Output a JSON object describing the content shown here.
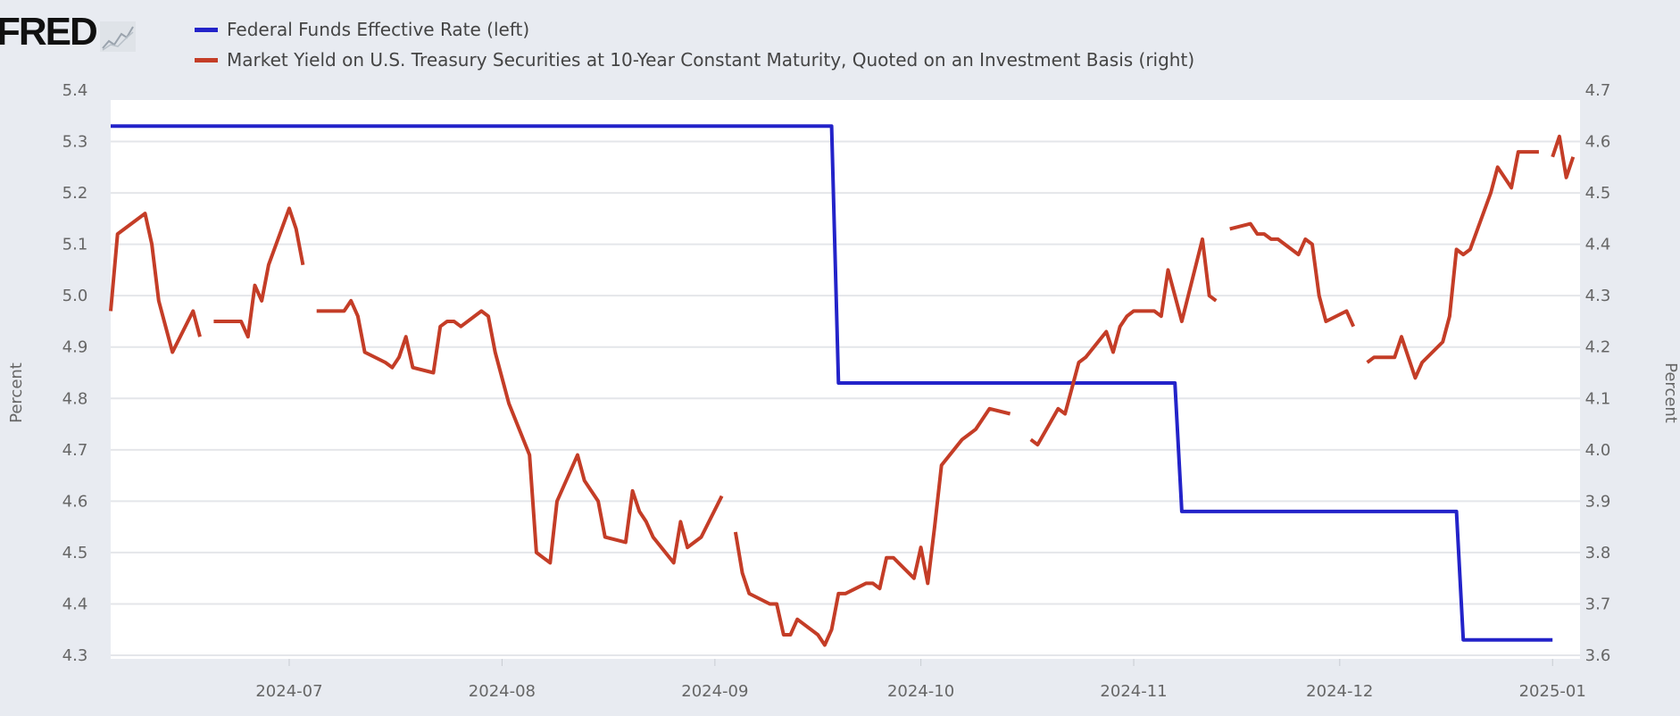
{
  "logo": {
    "text": "FRED",
    "icon": "chart-line-icon"
  },
  "chart_data": {
    "type": "line",
    "title": "",
    "y_left": {
      "label": "Percent",
      "range": [
        4.3,
        5.4
      ],
      "ticks": [
        "4.3",
        "4.4",
        "4.5",
        "4.6",
        "4.7",
        "4.8",
        "4.9",
        "5.0",
        "5.1",
        "5.2",
        "5.3",
        "5.4"
      ]
    },
    "y_right": {
      "label": "Percent",
      "range": [
        3.6,
        4.7
      ],
      "ticks": [
        "3.6",
        "3.7",
        "3.8",
        "3.9",
        "4.0",
        "4.1",
        "4.2",
        "4.3",
        "4.4",
        "4.5",
        "4.6",
        "4.7"
      ]
    },
    "x_range": [
      "2024-06-05",
      "2025-01-05"
    ],
    "x_ticks": [
      {
        "date": "2024-07-01",
        "label": "2024-07"
      },
      {
        "date": "2024-08-01",
        "label": "2024-08"
      },
      {
        "date": "2024-09-01",
        "label": "2024-09"
      },
      {
        "date": "2024-10-01",
        "label": "2024-10"
      },
      {
        "date": "2024-11-01",
        "label": "2024-11"
      },
      {
        "date": "2024-12-01",
        "label": "2024-12"
      },
      {
        "date": "2025-01-01",
        "label": "2025-01"
      }
    ],
    "grid": true,
    "legend_position": "top-left",
    "series": [
      {
        "name": "Federal Funds Effective Rate (left)",
        "axis": "left",
        "color": "#2323c9",
        "points": [
          [
            "2024-06-05",
            5.33
          ],
          [
            "2024-09-18",
            5.33
          ],
          [
            "2024-09-19",
            4.83
          ],
          [
            "2024-11-07",
            4.83
          ],
          [
            "2024-11-08",
            4.58
          ],
          [
            "2024-12-18",
            4.58
          ],
          [
            "2024-12-19",
            4.33
          ],
          [
            "2025-01-01",
            4.33
          ]
        ]
      },
      {
        "name": "Market Yield on U.S. Treasury Securities at 10-Year Constant Maturity, Quoted on an Investment Basis (right)",
        "axis": "right",
        "color": "#c43d27",
        "points": [
          [
            "2024-06-05",
            4.27
          ],
          [
            "2024-06-06",
            4.42
          ],
          [
            "2024-06-07",
            4.43
          ],
          [
            "2024-06-10",
            4.46
          ],
          [
            "2024-06-11",
            4.4
          ],
          [
            "2024-06-12",
            4.29
          ],
          [
            "2024-06-13",
            4.24
          ],
          [
            "2024-06-14",
            4.19
          ],
          [
            "2024-06-17",
            4.27
          ],
          [
            "2024-06-18",
            4.22
          ],
          [
            "2024-06-19",
            null
          ],
          [
            "2024-06-20",
            4.25
          ],
          [
            "2024-06-21",
            4.25
          ],
          [
            "2024-06-24",
            4.25
          ],
          [
            "2024-06-25",
            4.22
          ],
          [
            "2024-06-26",
            4.32
          ],
          [
            "2024-06-27",
            4.29
          ],
          [
            "2024-06-28",
            4.36
          ],
          [
            "2024-07-01",
            4.47
          ],
          [
            "2024-07-02",
            4.43
          ],
          [
            "2024-07-03",
            4.36
          ],
          [
            "2024-07-04",
            null
          ],
          [
            "2024-07-05",
            4.27
          ],
          [
            "2024-07-08",
            4.27
          ],
          [
            "2024-07-09",
            4.27
          ],
          [
            "2024-07-10",
            4.29
          ],
          [
            "2024-07-11",
            4.26
          ],
          [
            "2024-07-12",
            4.19
          ],
          [
            "2024-07-15",
            4.17
          ],
          [
            "2024-07-16",
            4.16
          ],
          [
            "2024-07-17",
            4.18
          ],
          [
            "2024-07-18",
            4.22
          ],
          [
            "2024-07-19",
            4.16
          ],
          [
            "2024-07-22",
            4.15
          ],
          [
            "2024-07-23",
            4.24
          ],
          [
            "2024-07-24",
            4.25
          ],
          [
            "2024-07-25",
            4.25
          ],
          [
            "2024-07-26",
            4.24
          ],
          [
            "2024-07-29",
            4.27
          ],
          [
            "2024-07-30",
            4.26
          ],
          [
            "2024-07-31",
            4.19
          ],
          [
            "2024-08-01",
            4.14
          ],
          [
            "2024-08-02",
            4.09
          ],
          [
            "2024-08-05",
            3.99
          ],
          [
            "2024-08-06",
            3.8
          ],
          [
            "2024-08-07",
            3.79
          ],
          [
            "2024-08-08",
            3.78
          ],
          [
            "2024-08-09",
            3.9
          ],
          [
            "2024-08-12",
            3.99
          ],
          [
            "2024-08-13",
            3.94
          ],
          [
            "2024-08-14",
            3.92
          ],
          [
            "2024-08-15",
            3.9
          ],
          [
            "2024-08-16",
            3.83
          ],
          [
            "2024-08-19",
            3.82
          ],
          [
            "2024-08-20",
            3.92
          ],
          [
            "2024-08-21",
            3.88
          ],
          [
            "2024-08-22",
            3.86
          ],
          [
            "2024-08-23",
            3.83
          ],
          [
            "2024-08-26",
            3.78
          ],
          [
            "2024-08-27",
            3.86
          ],
          [
            "2024-08-28",
            3.81
          ],
          [
            "2024-08-29",
            3.82
          ],
          [
            "2024-08-30",
            3.83
          ],
          [
            "2024-09-02",
            3.91
          ],
          [
            "2024-09-03",
            null
          ],
          [
            "2024-09-04",
            3.84
          ],
          [
            "2024-09-05",
            3.76
          ],
          [
            "2024-09-06",
            3.72
          ],
          [
            "2024-09-09",
            3.7
          ],
          [
            "2024-09-10",
            3.7
          ],
          [
            "2024-09-11",
            3.64
          ],
          [
            "2024-09-12",
            3.64
          ],
          [
            "2024-09-13",
            3.67
          ],
          [
            "2024-09-16",
            3.64
          ],
          [
            "2024-09-17",
            3.62
          ],
          [
            "2024-09-18",
            3.65
          ],
          [
            "2024-09-19",
            3.72
          ],
          [
            "2024-09-20",
            3.72
          ],
          [
            "2024-09-23",
            3.74
          ],
          [
            "2024-09-24",
            3.74
          ],
          [
            "2024-09-25",
            3.73
          ],
          [
            "2024-09-26",
            3.79
          ],
          [
            "2024-09-27",
            3.79
          ],
          [
            "2024-09-30",
            3.75
          ],
          [
            "2024-10-01",
            3.81
          ],
          [
            "2024-10-02",
            3.74
          ],
          [
            "2024-10-03",
            3.85
          ],
          [
            "2024-10-04",
            3.97
          ],
          [
            "2024-10-07",
            4.02
          ],
          [
            "2024-10-08",
            4.03
          ],
          [
            "2024-10-09",
            4.04
          ],
          [
            "2024-10-10",
            4.06
          ],
          [
            "2024-10-11",
            4.08
          ],
          [
            "2024-10-14",
            4.07
          ],
          [
            "2024-10-15",
            null
          ],
          [
            "2024-10-17",
            4.02
          ],
          [
            "2024-10-18",
            4.01
          ],
          [
            "2024-10-21",
            4.08
          ],
          [
            "2024-10-22",
            4.07
          ],
          [
            "2024-10-23",
            4.12
          ],
          [
            "2024-10-24",
            4.17
          ],
          [
            "2024-10-25",
            4.18
          ],
          [
            "2024-10-28",
            4.23
          ],
          [
            "2024-10-29",
            4.19
          ],
          [
            "2024-10-30",
            4.24
          ],
          [
            "2024-10-31",
            4.26
          ],
          [
            "2024-11-01",
            4.27
          ],
          [
            "2024-11-04",
            4.27
          ],
          [
            "2024-11-05",
            4.26
          ],
          [
            "2024-11-06",
            4.35
          ],
          [
            "2024-11-07",
            4.3
          ],
          [
            "2024-11-08",
            4.25
          ],
          [
            "2024-11-11",
            4.41
          ],
          [
            "2024-11-12",
            4.3
          ],
          [
            "2024-11-13",
            4.29
          ],
          [
            "2024-11-14",
            null
          ],
          [
            "2024-11-15",
            4.43
          ],
          [
            "2024-11-18",
            4.44
          ],
          [
            "2024-11-19",
            4.42
          ],
          [
            "2024-11-20",
            4.42
          ],
          [
            "2024-11-21",
            4.41
          ],
          [
            "2024-11-22",
            4.41
          ],
          [
            "2024-11-25",
            4.38
          ],
          [
            "2024-11-26",
            4.41
          ],
          [
            "2024-11-27",
            4.4
          ],
          [
            "2024-11-28",
            4.3
          ],
          [
            "2024-11-29",
            4.25
          ],
          [
            "2024-12-02",
            4.27
          ],
          [
            "2024-12-03",
            4.24
          ],
          [
            "2024-12-04",
            null
          ],
          [
            "2024-12-05",
            4.17
          ],
          [
            "2024-12-06",
            4.18
          ],
          [
            "2024-12-09",
            4.18
          ],
          [
            "2024-12-10",
            4.22
          ],
          [
            "2024-12-11",
            4.18
          ],
          [
            "2024-12-12",
            4.14
          ],
          [
            "2024-12-13",
            4.17
          ],
          [
            "2024-12-16",
            4.21
          ],
          [
            "2024-12-17",
            4.26
          ],
          [
            "2024-12-18",
            4.39
          ],
          [
            "2024-12-19",
            4.38
          ],
          [
            "2024-12-20",
            4.39
          ],
          [
            "2024-12-23",
            4.5
          ],
          [
            "2024-12-24",
            4.55
          ],
          [
            "2024-12-26",
            4.51
          ],
          [
            "2024-12-27",
            4.58
          ],
          [
            "2024-12-30",
            4.58
          ],
          [
            "2024-12-31",
            null
          ],
          [
            "2025-01-01",
            4.57
          ],
          [
            "2025-01-02",
            4.61
          ],
          [
            "2025-01-03",
            4.53
          ],
          [
            "2025-01-04",
            4.57
          ],
          [
            "2025-01-05",
            null
          ]
        ]
      }
    ]
  }
}
